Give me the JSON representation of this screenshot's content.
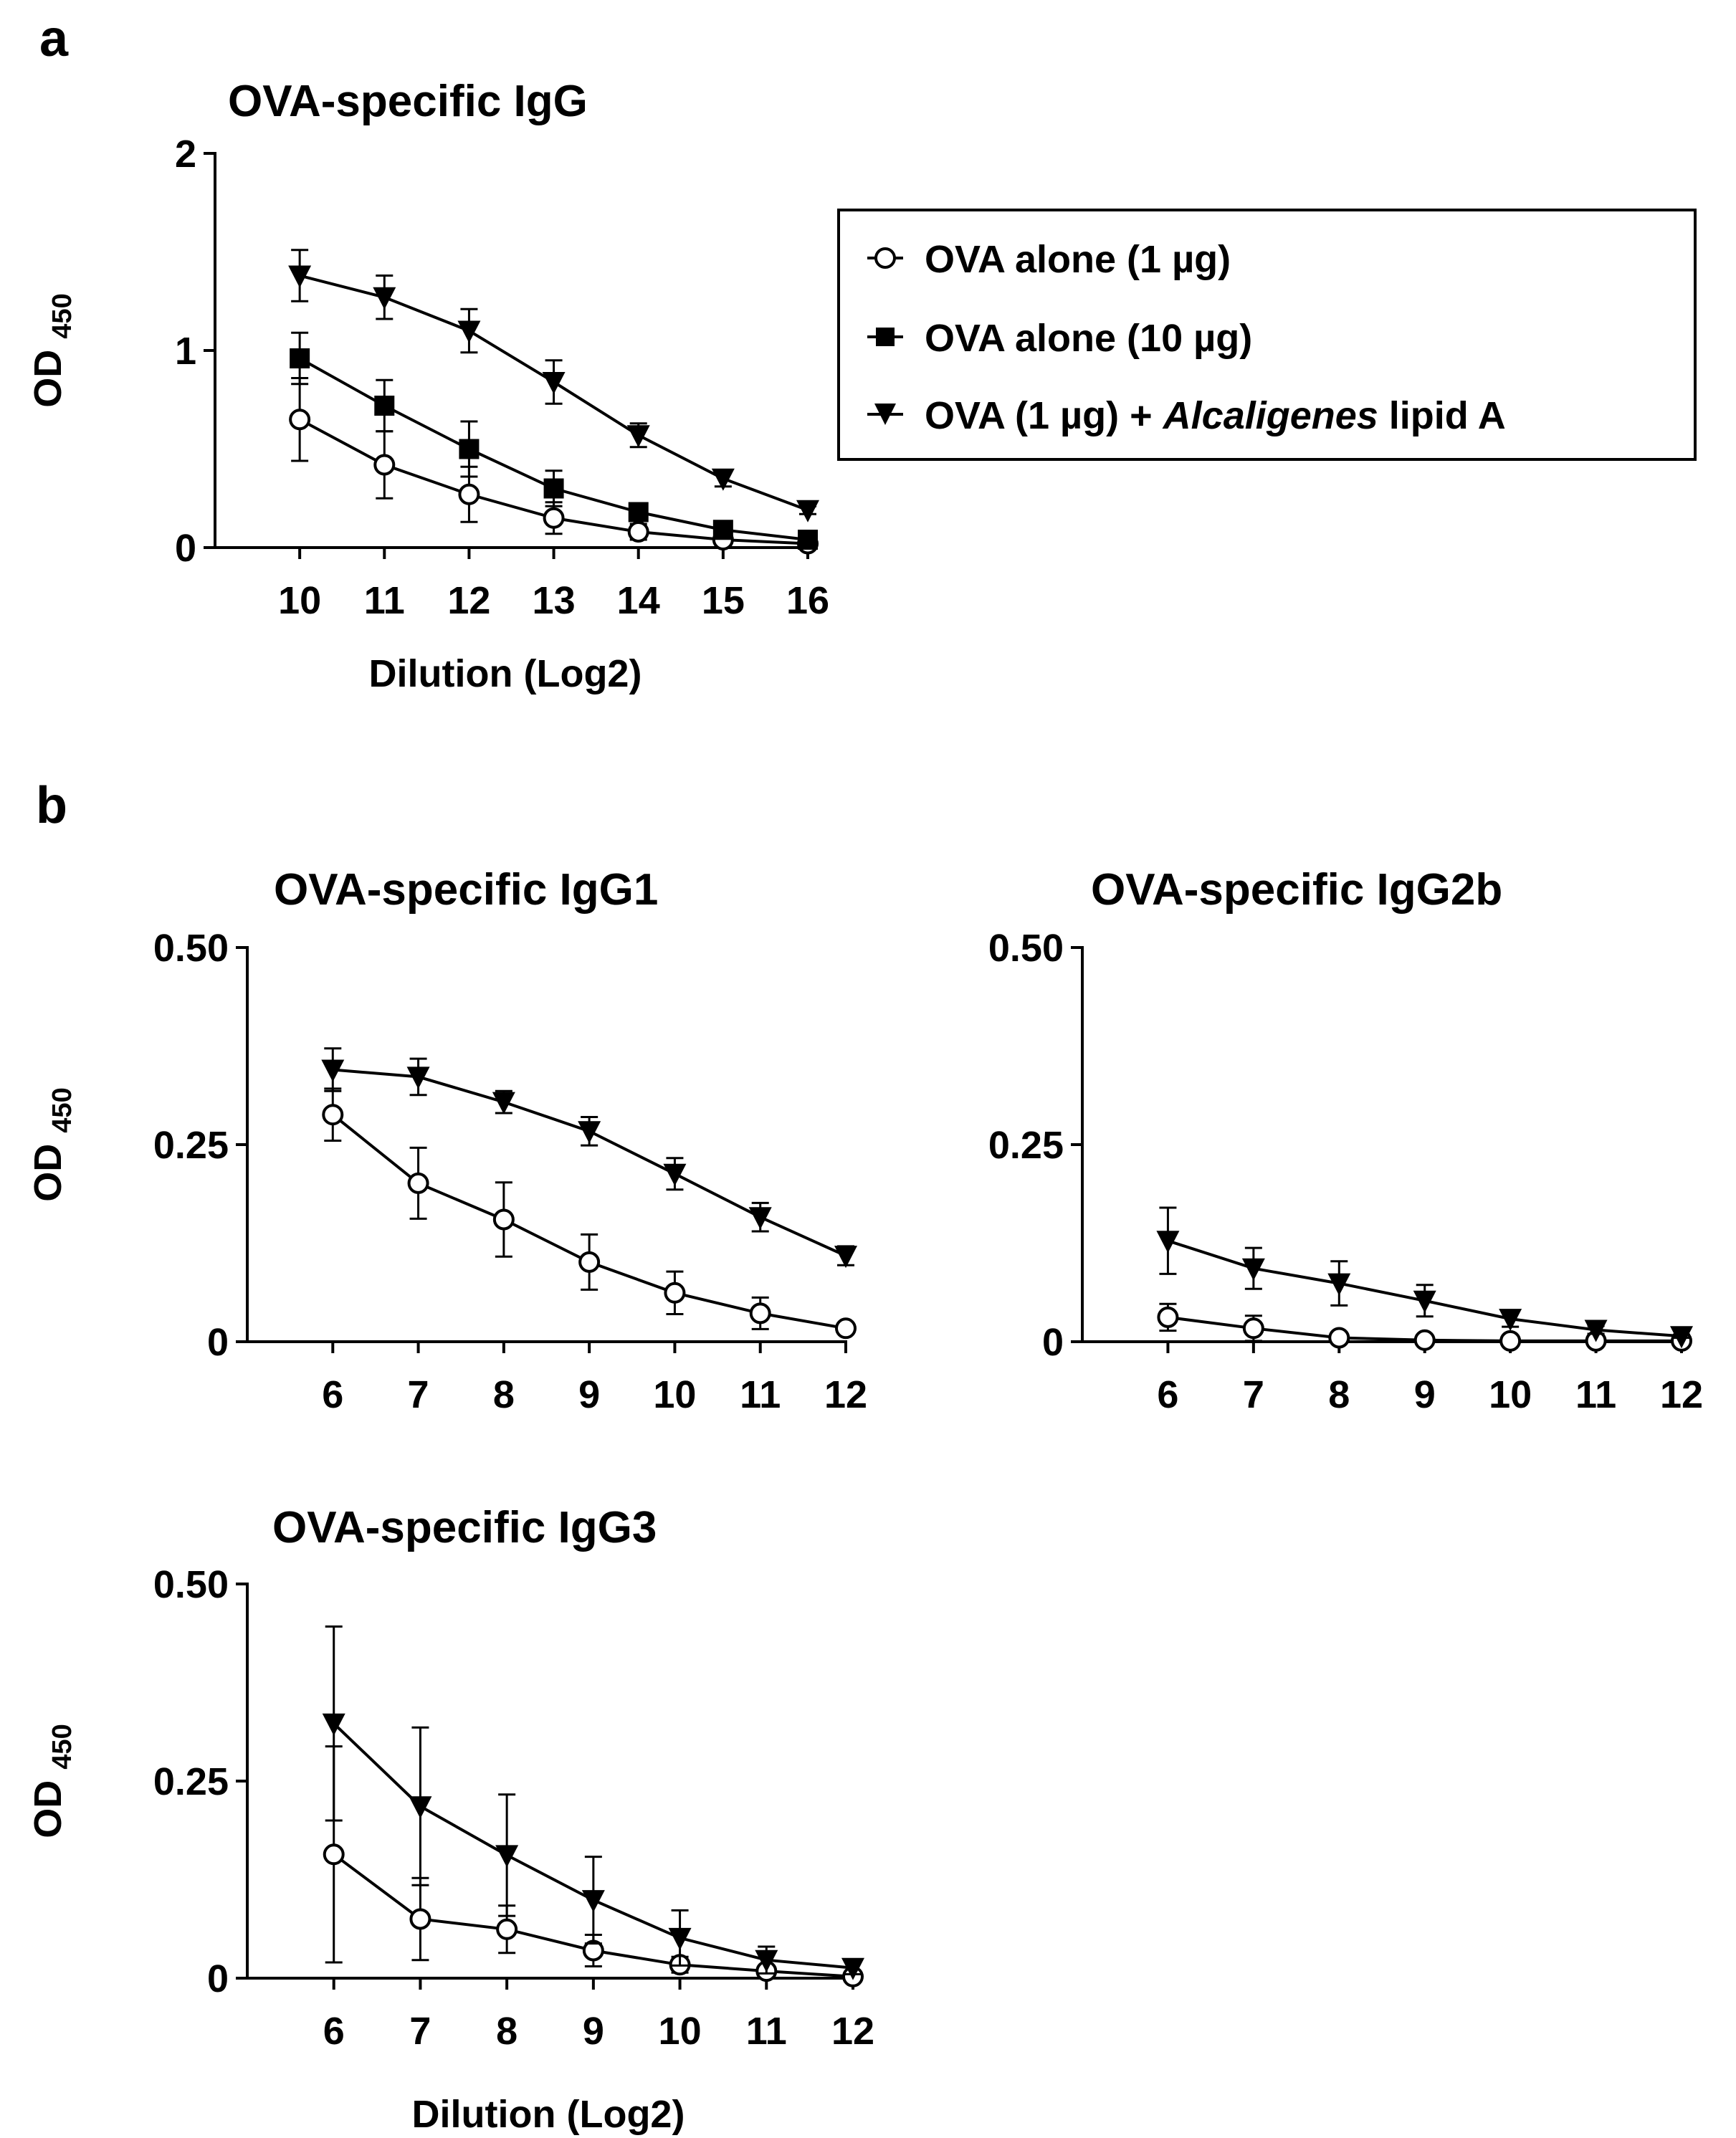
{
  "panel_labels": [
    "a",
    "b"
  ],
  "legend": {
    "items": [
      {
        "marker": "circle-open",
        "text_before": "OVA alone (1 µg)",
        "text_italic": "",
        "text_after": ""
      },
      {
        "marker": "square-filled",
        "text_before": "OVA alone (10 µg)",
        "text_italic": "",
        "text_after": ""
      },
      {
        "marker": "triangle-down-filled",
        "text_before": "OVA (1 µg) + ",
        "text_italic": "Alcaligenes",
        "text_after": " lipid A"
      }
    ]
  },
  "chart_data": [
    {
      "id": "igg",
      "type": "line",
      "title": "OVA-specific IgG",
      "ylabel_main": "OD",
      "ylabel_sub": "450",
      "xlabel": "Dilution (Log2)",
      "x": [
        10,
        11,
        12,
        13,
        14,
        15,
        16
      ],
      "xlim": [
        9,
        16
      ],
      "ylim": [
        0,
        2
      ],
      "yticks": [
        0,
        1,
        2
      ],
      "ytick_labels": [
        "0",
        "1",
        "2"
      ],
      "series": [
        {
          "name": "OVA alone (1 µg)",
          "marker": "circle-open",
          "values": [
            0.65,
            0.42,
            0.27,
            0.15,
            0.08,
            0.04,
            0.02
          ],
          "errors": [
            0.21,
            0.17,
            0.14,
            0.08,
            0.04,
            0.02,
            0.01
          ]
        },
        {
          "name": "OVA alone (10 µg)",
          "marker": "square-filled",
          "values": [
            0.96,
            0.72,
            0.5,
            0.3,
            0.18,
            0.09,
            0.04
          ],
          "errors": [
            0.13,
            0.13,
            0.14,
            0.09,
            0.04,
            0.03,
            0.02
          ]
        },
        {
          "name": "OVA (1 µg) + Alcaligenes lipid A",
          "marker": "triangle-down-filled",
          "values": [
            1.38,
            1.27,
            1.1,
            0.84,
            0.57,
            0.35,
            0.19
          ],
          "errors": [
            0.13,
            0.11,
            0.11,
            0.11,
            0.06,
            0.04,
            0.02
          ]
        }
      ]
    },
    {
      "id": "igg1",
      "type": "line",
      "title": "OVA-specific IgG1",
      "ylabel_main": "OD",
      "ylabel_sub": "450",
      "xlabel": "",
      "x": [
        6,
        7,
        8,
        9,
        10,
        11,
        12
      ],
      "xlim": [
        5,
        12
      ],
      "ylim": [
        0,
        0.5
      ],
      "yticks": [
        0,
        0.25,
        0.5
      ],
      "ytick_labels": [
        "0",
        "0.25",
        "0.50"
      ],
      "series": [
        {
          "name": "OVA alone (1 µg)",
          "marker": "circle-open",
          "values": [
            0.288,
            0.201,
            0.155,
            0.101,
            0.062,
            0.036,
            0.017
          ],
          "errors": [
            0.033,
            0.045,
            0.047,
            0.035,
            0.027,
            0.02,
            0.006
          ]
        },
        {
          "name": "OVA (1 µg) + Alcaligenes lipid A",
          "marker": "triangle-down-filled",
          "values": [
            0.345,
            0.336,
            0.304,
            0.267,
            0.213,
            0.158,
            0.109
          ],
          "errors": [
            0.027,
            0.023,
            0.014,
            0.018,
            0.02,
            0.018,
            0.012
          ]
        }
      ]
    },
    {
      "id": "igg2b",
      "type": "line",
      "title": "OVA-specific IgG2b",
      "ylabel_main": "",
      "ylabel_sub": "",
      "xlabel": "",
      "x": [
        6,
        7,
        8,
        9,
        10,
        11,
        12
      ],
      "xlim": [
        5,
        12
      ],
      "ylim": [
        0,
        0.5
      ],
      "yticks": [
        0,
        0.25,
        0.5
      ],
      "ytick_labels": [
        "0",
        "0.25",
        "0.50"
      ],
      "series": [
        {
          "name": "OVA alone (1 µg)",
          "marker": "circle-open",
          "values": [
            0.031,
            0.017,
            0.005,
            0.002,
            0.001,
            0.001,
            0.001
          ],
          "errors": [
            0.017,
            0.016,
            0.003,
            0.002,
            0.001,
            0.001,
            0.001
          ]
        },
        {
          "name": "OVA (1 µg) + Alcaligenes lipid A",
          "marker": "triangle-down-filled",
          "values": [
            0.128,
            0.093,
            0.074,
            0.052,
            0.029,
            0.015,
            0.007
          ],
          "errors": [
            0.042,
            0.026,
            0.028,
            0.02,
            0.01,
            0.005,
            0.002
          ]
        }
      ]
    },
    {
      "id": "igg3",
      "type": "line",
      "title": "OVA-specific IgG3",
      "ylabel_main": "OD",
      "ylabel_sub": "450",
      "xlabel": "Dilution (Log2)",
      "x": [
        6,
        7,
        8,
        9,
        10,
        11,
        12
      ],
      "xlim": [
        5,
        12
      ],
      "ylim": [
        0,
        0.5
      ],
      "yticks": [
        0,
        0.25,
        0.5
      ],
      "ytick_labels": [
        "0",
        "0.25",
        "0.50"
      ],
      "series": [
        {
          "name": "OVA alone (1 µg)",
          "marker": "circle-open",
          "values": [
            0.157,
            0.075,
            0.062,
            0.035,
            0.017,
            0.009,
            0.002
          ],
          "errors": [
            0.137,
            0.052,
            0.03,
            0.02,
            0.01,
            0.006,
            0.002
          ]
        },
        {
          "name": "OVA (1 µg) + Alcaligenes lipid A",
          "marker": "triangle-down-filled",
          "values": [
            0.323,
            0.218,
            0.156,
            0.099,
            0.051,
            0.023,
            0.013
          ],
          "errors": [
            0.123,
            0.1,
            0.077,
            0.055,
            0.035,
            0.017,
            0.008
          ]
        }
      ]
    }
  ]
}
